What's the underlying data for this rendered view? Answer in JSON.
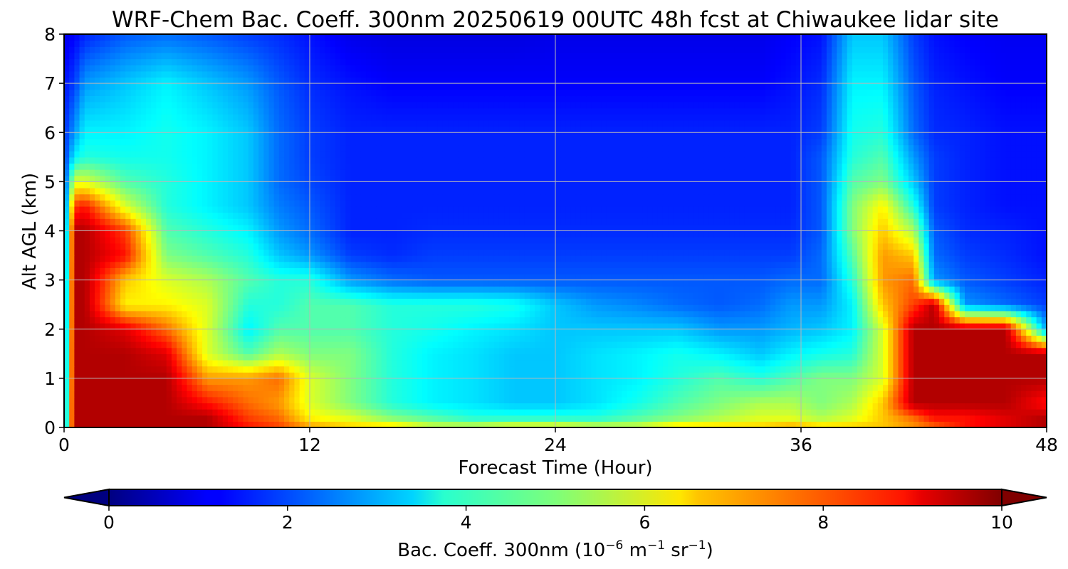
{
  "chart_data": {
    "type": "heatmap",
    "title": "WRF-Chem Bac. Coeff. 300nm  20250619 00UTC 48h fcst at Chiwaukee lidar site",
    "xlabel": "Forecast Time (Hour)",
    "ylabel": "Alt AGL (km)",
    "xlim": [
      0,
      48
    ],
    "ylim": [
      0,
      8
    ],
    "x_ticks": [
      "0",
      "12",
      "24",
      "36",
      "48"
    ],
    "y_ticks": [
      "0",
      "1",
      "2",
      "3",
      "4",
      "5",
      "6",
      "7",
      "8"
    ],
    "grid": true,
    "colormap": "jet",
    "colorbar": {
      "label_main": "Bac. Coeff. 300nm  (10",
      "label_exp1": "−6",
      "label_mid": " m",
      "label_exp2": "−1",
      "label_mid2": " sr",
      "label_exp3": "−1",
      "label_end": ")",
      "range": [
        0,
        10
      ],
      "ticks": [
        "0",
        "2",
        "4",
        "6",
        "8",
        "10"
      ],
      "extend": "both"
    },
    "field": {
      "x": [
        0,
        0.5,
        1,
        3,
        5,
        7,
        9,
        10.5,
        12,
        14,
        16,
        18,
        20,
        22,
        24,
        26,
        28,
        30,
        32,
        34,
        35.5,
        37,
        38.5,
        40,
        41.5,
        42.5,
        44,
        46,
        48
      ],
      "y": [
        0,
        0.2,
        0.5,
        1.0,
        1.5,
        2.0,
        2.5,
        3.0,
        3.5,
        4.0,
        4.5,
        5.0,
        5.5,
        6.0,
        7.0,
        8.0
      ],
      "z": [
        [
          2.0,
          10,
          10,
          10,
          10,
          10,
          9.0,
          8.5,
          7.5,
          7.0,
          7.0,
          6.0,
          6.0,
          6.5,
          6.5,
          6.0,
          6.0,
          7.0,
          7.0,
          7.0,
          7.5,
          7.0,
          7.0,
          7.0,
          7.5,
          8.0,
          9.0,
          9.5,
          10
        ],
        [
          2.0,
          10,
          10,
          10,
          10,
          10,
          8.5,
          8.0,
          6.5,
          6.0,
          5.0,
          4.5,
          4.0,
          4.0,
          4.0,
          4.0,
          4.5,
          5.0,
          5.5,
          6.0,
          6.0,
          5.5,
          6.0,
          7.0,
          8.0,
          9.0,
          9.0,
          9.5,
          10
        ],
        [
          2.0,
          10,
          10,
          10,
          10,
          9.0,
          8.0,
          7.5,
          6.0,
          5.0,
          4.0,
          3.5,
          3.3,
          3.0,
          3.0,
          3.3,
          3.8,
          4.5,
          5.0,
          5.5,
          5.5,
          5.0,
          5.5,
          7.0,
          10,
          10,
          10,
          10,
          9.0
        ],
        [
          1.8,
          10,
          10,
          10,
          10,
          7.5,
          7.5,
          8.0,
          6.0,
          5.0,
          4.0,
          3.5,
          3.3,
          3.0,
          3.0,
          3.3,
          3.5,
          4.0,
          4.5,
          4.0,
          4.5,
          5.0,
          5.0,
          6.0,
          10,
          10,
          10,
          10,
          10
        ],
        [
          1.8,
          10,
          10,
          10,
          9.5,
          6.0,
          4.5,
          5.5,
          5.0,
          5.0,
          4.0,
          3.5,
          3.3,
          3.0,
          3.0,
          3.3,
          3.5,
          3.8,
          3.5,
          3.0,
          3.5,
          3.8,
          4.0,
          6.0,
          10,
          10,
          10,
          10,
          10
        ],
        [
          1.6,
          10,
          10,
          9.5,
          8.0,
          6.0,
          3.5,
          4.5,
          4.5,
          4.5,
          4.0,
          3.8,
          3.5,
          3.3,
          3.0,
          3.0,
          3.0,
          3.0,
          2.5,
          2.5,
          2.8,
          3.0,
          3.5,
          6.0,
          10,
          10,
          10,
          10,
          2.5
        ],
        [
          1.5,
          10,
          10,
          6.5,
          6.5,
          6.0,
          4.0,
          4.0,
          4.5,
          4.5,
          4.0,
          4.0,
          4.0,
          3.8,
          3.0,
          2.5,
          2.3,
          2.0,
          1.8,
          2.0,
          2.5,
          2.5,
          3.5,
          7.0,
          8.5,
          10,
          2.5,
          2.0,
          1.5
        ],
        [
          1.5,
          10,
          10,
          7.0,
          6.0,
          5.5,
          4.5,
          4.0,
          4.0,
          2.5,
          2.0,
          1.8,
          1.8,
          1.8,
          1.8,
          1.8,
          1.8,
          1.8,
          1.8,
          1.8,
          2.0,
          2.0,
          4.0,
          7.5,
          8.0,
          2.5,
          1.8,
          1.5,
          1.2
        ],
        [
          1.3,
          10,
          10,
          9.0,
          5.0,
          4.5,
          4.0,
          3.0,
          2.5,
          1.5,
          1.3,
          1.5,
          1.5,
          1.5,
          1.5,
          1.5,
          1.5,
          1.5,
          1.5,
          1.5,
          1.5,
          2.0,
          4.5,
          7.5,
          7.0,
          2.0,
          1.5,
          1.3,
          1.0
        ],
        [
          1.2,
          10,
          10,
          8.5,
          4.5,
          4.0,
          3.5,
          2.5,
          2.0,
          1.2,
          1.2,
          1.3,
          1.3,
          1.3,
          1.3,
          1.3,
          1.3,
          1.3,
          1.3,
          1.3,
          1.3,
          1.8,
          5.0,
          7.0,
          5.5,
          1.8,
          1.3,
          1.2,
          1.0
        ],
        [
          1.2,
          8.5,
          9.0,
          6.0,
          4.0,
          3.5,
          3.0,
          2.2,
          1.8,
          1.2,
          1.2,
          1.2,
          1.2,
          1.2,
          1.2,
          1.2,
          1.2,
          1.2,
          1.2,
          1.2,
          1.2,
          1.8,
          5.0,
          6.5,
          4.0,
          1.5,
          1.2,
          1.0,
          1.0
        ],
        [
          1.3,
          6.0,
          6.0,
          4.5,
          4.0,
          3.5,
          3.0,
          2.0,
          1.6,
          1.2,
          1.2,
          1.2,
          1.2,
          1.2,
          1.2,
          1.2,
          1.2,
          1.2,
          1.2,
          1.2,
          1.2,
          1.8,
          4.5,
          5.0,
          3.0,
          1.5,
          1.2,
          1.0,
          1.0
        ],
        [
          1.3,
          3.5,
          4.0,
          3.8,
          3.8,
          3.5,
          3.0,
          2.0,
          1.5,
          1.2,
          1.2,
          1.2,
          1.2,
          1.2,
          1.2,
          1.2,
          1.2,
          1.2,
          1.2,
          1.2,
          1.2,
          1.8,
          4.0,
          4.5,
          2.5,
          1.5,
          1.2,
          1.0,
          1.0
        ],
        [
          1.3,
          2.5,
          3.5,
          3.5,
          3.8,
          3.5,
          3.0,
          2.0,
          1.5,
          1.2,
          1.2,
          1.2,
          1.2,
          1.2,
          1.2,
          1.2,
          1.2,
          1.2,
          1.2,
          1.2,
          1.2,
          1.5,
          3.8,
          4.0,
          2.0,
          1.3,
          1.2,
          1.0,
          1.0
        ],
        [
          1.0,
          1.5,
          2.5,
          3.0,
          3.5,
          3.0,
          2.5,
          1.8,
          1.3,
          1.0,
          0.8,
          0.8,
          0.8,
          0.8,
          0.8,
          0.8,
          0.8,
          0.8,
          0.8,
          0.8,
          1.0,
          1.3,
          3.5,
          3.5,
          1.8,
          1.2,
          1.0,
          0.8,
          0.8
        ],
        [
          0.6,
          0.8,
          1.2,
          1.8,
          2.0,
          1.8,
          1.5,
          1.3,
          1.0,
          0.6,
          0.5,
          0.5,
          0.5,
          0.5,
          0.6,
          0.6,
          0.6,
          0.6,
          0.6,
          0.6,
          0.8,
          1.0,
          3.0,
          3.0,
          1.5,
          1.0,
          0.8,
          0.7,
          0.7
        ]
      ]
    }
  }
}
